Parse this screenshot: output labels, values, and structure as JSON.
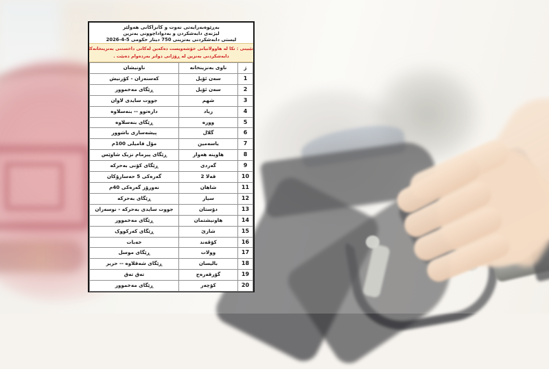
{
  "document": {
    "title_lines": [
      "بەڕێوەبەرایەتی  نەوت و کانزاکانی هەولێر",
      "لیژنەی دابەشکردن و بەدواداچوونی بەنزین",
      "لیستی دابەشکردنی بەنزینی 750 دینار حکومی 5-4-2026"
    ],
    "notice_lines": [
      "تێبینی : تکا لە هاوولاتیانی خۆشەویست دەکەین لەکاتی داخستنی بەنزینخانەکان پشێوی دروست نەکەن",
      "دابەشکردنی بەنزین لە ڕۆژانی دواتر بەردەوام دەبێت ."
    ],
    "table": {
      "columns": [
        "ژ",
        "ناوی بەنزینخانە",
        "ناونیشان"
      ],
      "rows": [
        {
          "no": "1",
          "station": "سەن ئۆیل",
          "address": "کەسنەزان - کۆرنیش"
        },
        {
          "no": "2",
          "station": "سەن ئۆیل",
          "address": "ڕێگای مەخموور"
        },
        {
          "no": "3",
          "station": "شهم",
          "address": "جووت سایدی لاوان"
        },
        {
          "no": "4",
          "station": "زیاد",
          "address": "دارەتوو -- بنەسلاوە"
        },
        {
          "no": "5",
          "station": "ووزە",
          "address": "ڕێگای بنەسلاوە"
        },
        {
          "no": "6",
          "station": "گلال",
          "address": "پیشەسازی باشوور"
        },
        {
          "no": "7",
          "station": "یاسەمین",
          "address": "مۆل فامیلی 100م"
        },
        {
          "no": "8",
          "station": "هاوینە هەوار",
          "address": "ڕێگای پیرمام نزیک شاوێس"
        },
        {
          "no": "9",
          "station": "گەردی",
          "address": "ڕێگای کۆنی بەحرکە"
        },
        {
          "no": "10",
          "station": "قەلا 2",
          "address": "گەرەکی 5 حەسارۆکان"
        },
        {
          "no": "11",
          "station": "شاهان",
          "address": "نەورۆز گەرەکی 40م"
        },
        {
          "no": "12",
          "station": "سیار",
          "address": "ڕێگای بەحرکە"
        },
        {
          "no": "13",
          "station": "دۆستان",
          "address": "جووت سایدی بەحرکە - نوسەران"
        },
        {
          "no": "14",
          "station": "هاونیشتمان",
          "address": "ڕێگای مەخموور"
        },
        {
          "no": "15",
          "station": "شارێ",
          "address": "ڕێگای کەرکووک"
        },
        {
          "no": "16",
          "station": "کۆڤەند",
          "address": "خەبات"
        },
        {
          "no": "17",
          "station": "وولات",
          "address": "ڕێگای موسل"
        },
        {
          "no": "18",
          "station": "بالیسان",
          "address": "ڕێگای شەقلاوە -- حریر"
        },
        {
          "no": "19",
          "station": "گۆرقەرەج",
          "address": "تەق تەق"
        },
        {
          "no": "20",
          "station": "کۆچەر",
          "address": "ڕێگای مەخموور"
        }
      ]
    }
  },
  "colors": {
    "notice_background": "#fcf1cf",
    "notice_text": "#cf1d1d",
    "table_border": "#181818",
    "grid_line": "#8f8f8f",
    "text": "#1a1a1a"
  },
  "photo": {
    "elements": [
      "car-taillight",
      "fuel-door",
      "fuel-nozzle",
      "hand-holding-nozzle",
      "forearm"
    ]
  }
}
